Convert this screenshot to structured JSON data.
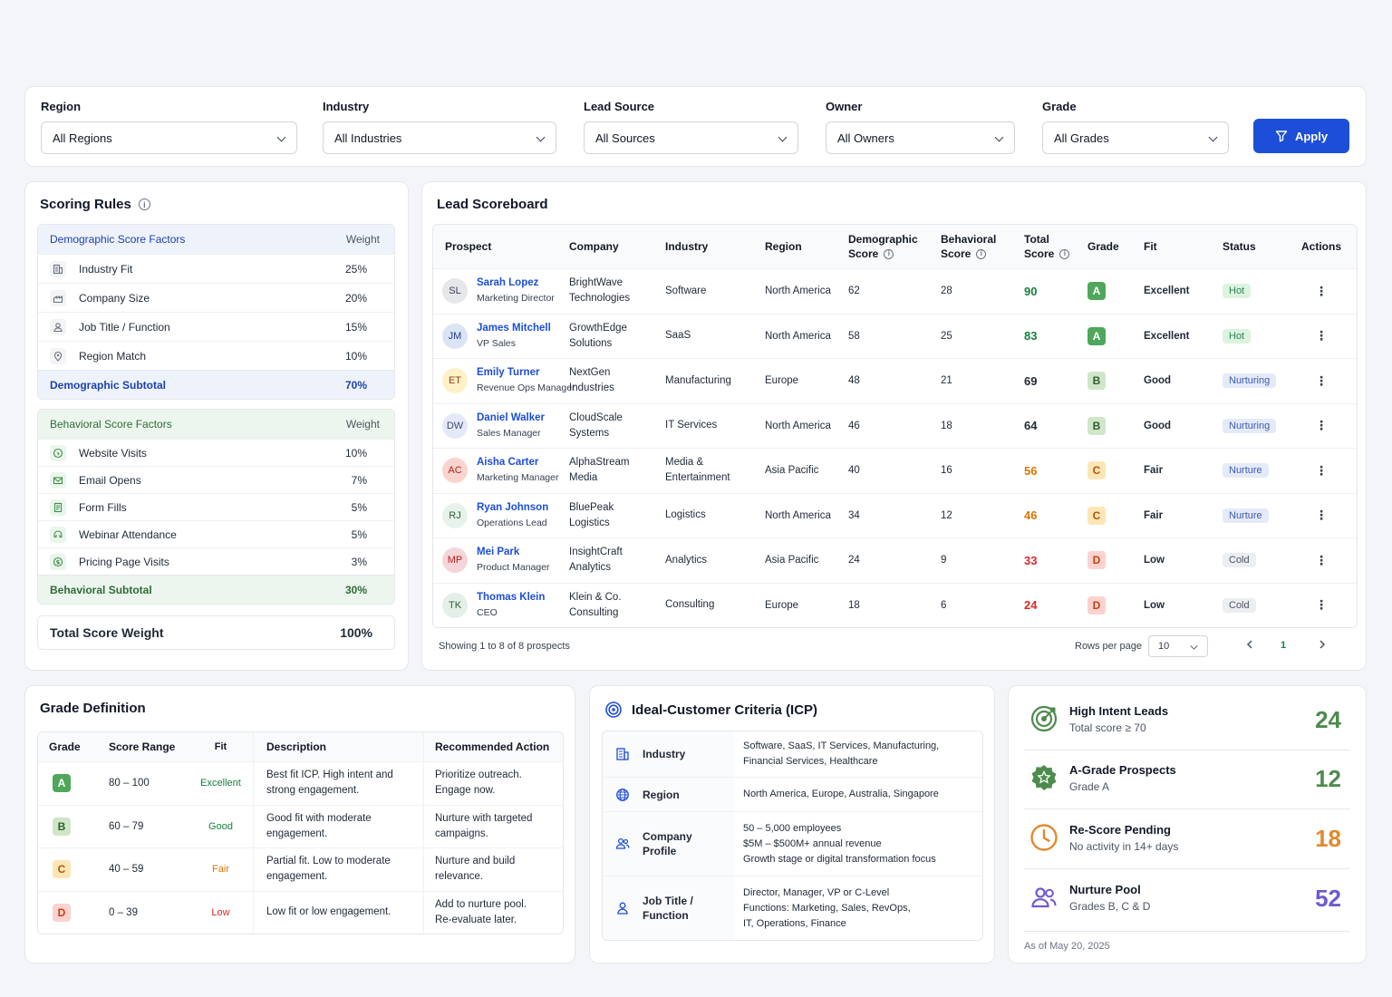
{
  "filters": {
    "region": {
      "label": "Region",
      "value": "All Regions"
    },
    "industry": {
      "label": "Industry",
      "value": "All Industries"
    },
    "lead_source": {
      "label": "Lead Source",
      "value": "All Sources"
    },
    "owner": {
      "label": "Owner",
      "value": "All Owners"
    },
    "grade": {
      "label": "Grade",
      "value": "All Grades"
    },
    "apply_label": "Apply"
  },
  "scoring": {
    "title": "Scoring Rules",
    "demographic": {
      "header": "Demographic Score Factors",
      "weight_header": "Weight",
      "items": [
        {
          "label": "Industry Fit",
          "weight": "25%",
          "icon": "building-icon"
        },
        {
          "label": "Company Size",
          "weight": "20%",
          "icon": "company-size-icon"
        },
        {
          "label": "Job Title / Function",
          "weight": "15%",
          "icon": "person-icon"
        },
        {
          "label": "Region Match",
          "weight": "10%",
          "icon": "location-pin-icon"
        }
      ],
      "subtotal_label": "Demographic Subtotal",
      "subtotal": "70%"
    },
    "behavioral": {
      "header": "Behavioral Score Factors",
      "weight_header": "Weight",
      "items": [
        {
          "label": "Website Visits",
          "weight": "10%",
          "icon": "cursor-icon"
        },
        {
          "label": "Email Opens",
          "weight": "7%",
          "icon": "envelope-icon"
        },
        {
          "label": "Form Fills",
          "weight": "5%",
          "icon": "form-icon"
        },
        {
          "label": "Webinar Attendance",
          "weight": "5%",
          "icon": "webinar-icon"
        },
        {
          "label": "Pricing Page Visits",
          "weight": "3%",
          "icon": "pricing-icon"
        }
      ],
      "subtotal_label": "Behavioral Subtotal",
      "subtotal": "30%"
    },
    "total_label": "Total Score Weight",
    "total": "100%"
  },
  "scoreboard": {
    "title": "Lead Scoreboard",
    "columns": {
      "prospect": "Prospect",
      "company": "Company",
      "industry": "Industry",
      "region": "Region",
      "demographic_1": "Demographic",
      "demographic_2": "Score",
      "behavioral_1": "Behavioral",
      "behavioral_2": "Score",
      "total_1": "Total",
      "total_2": "Score",
      "grade": "Grade",
      "fit": "Fit",
      "status": "Status",
      "actions": "Actions"
    },
    "rows": [
      {
        "initials": "SL",
        "name": "Sarah Lopez",
        "title": "Marketing Director",
        "company_1": "BrightWave",
        "company_2": "Technologies",
        "industry_1": "Software",
        "industry_2": "",
        "region": "North America",
        "demographic": "62",
        "behavioral": "28",
        "total": "90",
        "grade": "A",
        "fit": "Excellent",
        "status": "Hot",
        "avatar_bg": "#e5e7eb",
        "avatar_fg": "#374151",
        "total_color": "#15803d",
        "grade_bg": "#4ea75a",
        "grade_fg": "#ffffff",
        "status_bg": "#dcf3e0",
        "status_fg": "#2f855a"
      },
      {
        "initials": "JM",
        "name": "James Mitchell",
        "title": "VP Sales",
        "company_1": "GrowthEdge",
        "company_2": "Solutions",
        "industry_1": "SaaS",
        "industry_2": "",
        "region": "North America",
        "demographic": "58",
        "behavioral": "25",
        "total": "83",
        "grade": "A",
        "fit": "Excellent",
        "status": "Hot",
        "avatar_bg": "#dbe4f5",
        "avatar_fg": "#1e3a8a",
        "total_color": "#15803d",
        "grade_bg": "#4ea75a",
        "grade_fg": "#ffffff",
        "status_bg": "#dcf3e0",
        "status_fg": "#2f855a"
      },
      {
        "initials": "ET",
        "name": "Emily Turner",
        "title": "Revenue Ops Manager",
        "company_1": "NextGen",
        "company_2": "Industries",
        "industry_1": "Manufacturing",
        "industry_2": "",
        "region": "Europe",
        "demographic": "48",
        "behavioral": "21",
        "total": "69",
        "grade": "B",
        "fit": "Good",
        "status": "Nurturing",
        "avatar_bg": "#fdf1c7",
        "avatar_fg": "#92400e",
        "total_color": "#1f2937",
        "grade_bg": "#cfe6c9",
        "grade_fg": "#2f5d2a",
        "status_bg": "#e5eaf8",
        "status_fg": "#3b5bb5"
      },
      {
        "initials": "DW",
        "name": "Daniel Walker",
        "title": "Sales Manager",
        "company_1": "CloudScale",
        "company_2": "Systems",
        "industry_1": "IT Services",
        "industry_2": "",
        "region": "North America",
        "demographic": "46",
        "behavioral": "18",
        "total": "64",
        "grade": "B",
        "fit": "Good",
        "status": "Nurturing",
        "avatar_bg": "#e5e9f7",
        "avatar_fg": "#3b4a7a",
        "total_color": "#1f2937",
        "grade_bg": "#cfe6c9",
        "grade_fg": "#2f5d2a",
        "status_bg": "#e5eaf8",
        "status_fg": "#3b5bb5"
      },
      {
        "initials": "AC",
        "name": "Aisha Carter",
        "title": "Marketing Manager",
        "company_1": "AlphaStream",
        "company_2": "Media",
        "industry_1": "Media &",
        "industry_2": "Entertainment",
        "region": "Asia Pacific",
        "demographic": "40",
        "behavioral": "16",
        "total": "56",
        "grade": "C",
        "fit": "Fair",
        "status": "Nurture",
        "avatar_bg": "#fad4cf",
        "avatar_fg": "#b42318",
        "total_color": "#d97706",
        "grade_bg": "#fde6b5",
        "grade_fg": "#b45309",
        "status_bg": "#e5eaf8",
        "status_fg": "#3b5bb5"
      },
      {
        "initials": "RJ",
        "name": "Ryan Johnson",
        "title": "Operations Lead",
        "company_1": "BluePeak",
        "company_2": "Logistics",
        "industry_1": "Logistics",
        "industry_2": "",
        "region": "North America",
        "demographic": "34",
        "behavioral": "12",
        "total": "46",
        "grade": "C",
        "fit": "Fair",
        "status": "Nurture",
        "avatar_bg": "#e6f2ea",
        "avatar_fg": "#2f5d3a",
        "total_color": "#d97706",
        "grade_bg": "#fde6b5",
        "grade_fg": "#b45309",
        "status_bg": "#e5eaf8",
        "status_fg": "#3b5bb5"
      },
      {
        "initials": "MP",
        "name": "Mei Park",
        "title": "Product Manager",
        "company_1": "InsightCraft",
        "company_2": "Analytics",
        "industry_1": "Analytics",
        "industry_2": "",
        "region": "Asia Pacific",
        "demographic": "24",
        "behavioral": "9",
        "total": "33",
        "grade": "D",
        "fit": "Low",
        "status": "Cold",
        "avatar_bg": "#f6d5d8",
        "avatar_fg": "#b42318",
        "total_color": "#dc2626",
        "grade_bg": "#fbd2d0",
        "grade_fg": "#c2410c",
        "status_bg": "#eceef1",
        "status_fg": "#4b5563"
      },
      {
        "initials": "TK",
        "name": "Thomas Klein",
        "title": "CEO",
        "company_1": "Klein & Co.",
        "company_2": "Consulting",
        "industry_1": "Consulting",
        "industry_2": "",
        "region": "Europe",
        "demographic": "18",
        "behavioral": "6",
        "total": "24",
        "grade": "D",
        "fit": "Low",
        "status": "Cold",
        "avatar_bg": "#e3efe7",
        "avatar_fg": "#2f5d3a",
        "total_color": "#dc2626",
        "grade_bg": "#fbd2d0",
        "grade_fg": "#c2410c",
        "status_bg": "#eceef1",
        "status_fg": "#4b5563"
      }
    ],
    "showing": "Showing 1 to 8 of 8 prospects",
    "rows_per_page_label": "Rows per page",
    "rows_per_page": "10",
    "page": "1"
  },
  "grade_definition": {
    "title": "Grade Definition",
    "columns": {
      "grade": "Grade",
      "range": "Score Range",
      "fit": "Fit",
      "description": "Description",
      "action": "Recommended Action"
    },
    "rows": [
      {
        "grade": "A",
        "range": "80 – 100",
        "fit": "Excellent",
        "desc_1": "Best fit ICP. High intent and",
        "desc_2": "strong engagement.",
        "action_1": "Prioritize outreach.",
        "action_2": "Engage now.",
        "grade_bg": "#4ea75a",
        "grade_fg": "#ffffff",
        "fit_color": "#15803d"
      },
      {
        "grade": "B",
        "range": "60 – 79",
        "fit": "Good",
        "desc_1": "Good fit with moderate",
        "desc_2": "engagement.",
        "action_1": "Nurture with targeted",
        "action_2": "campaigns.",
        "grade_bg": "#cfe6c9",
        "grade_fg": "#2f5d2a",
        "fit_color": "#15803d"
      },
      {
        "grade": "C",
        "range": "40 – 59",
        "fit": "Fair",
        "desc_1": "Partial fit. Low to moderate",
        "desc_2": "engagement.",
        "action_1": "Nurture and build",
        "action_2": "relevance.",
        "grade_bg": "#fde6b5",
        "grade_fg": "#b45309",
        "fit_color": "#d97706"
      },
      {
        "grade": "D",
        "range": "0 – 39",
        "fit": "Low",
        "desc_1": "Low fit or low engagement.",
        "desc_2": "",
        "action_1": "Add to nurture pool.",
        "action_2": "Re-evaluate later.",
        "grade_bg": "#fbd2d0",
        "grade_fg": "#c2410c",
        "fit_color": "#dc2626"
      }
    ]
  },
  "icp": {
    "title": "Ideal-Customer Criteria (ICP)",
    "rows": [
      {
        "key_1": "Industry",
        "key_2": "",
        "icon": "building-icon",
        "lines": [
          "Software, SaaS, IT Services, Manufacturing,",
          "Financial Services, Healthcare"
        ]
      },
      {
        "key_1": "Region",
        "key_2": "",
        "icon": "globe-icon",
        "lines": [
          "North America, Europe, Australia, Singapore"
        ]
      },
      {
        "key_1": "Company",
        "key_2": "Profile",
        "icon": "people-icon",
        "lines": [
          "50 – 5,000 employees",
          "$5M – $500M+ annual revenue",
          "Growth stage or digital transformation focus"
        ]
      },
      {
        "key_1": "Job Title /",
        "key_2": "Function",
        "icon": "person-icon",
        "lines": [
          "Director, Manager, VP or C-Level",
          "Functions: Marketing, Sales, RevOps,",
          "IT, Operations, Finance"
        ]
      }
    ]
  },
  "kpis": {
    "items": [
      {
        "title": "High Intent Leads",
        "sub": "Total score ≥ 70",
        "value": "24",
        "color": "#4d8b4d",
        "icon": "target-icon"
      },
      {
        "title": "A-Grade Prospects",
        "sub": "Grade A",
        "value": "12",
        "color": "#4d8b4d",
        "icon": "star-badge-icon"
      },
      {
        "title": "Re-Score Pending",
        "sub": "No activity in 14+ days",
        "value": "18",
        "color": "#e08a2c",
        "icon": "clock-icon"
      },
      {
        "title": "Nurture Pool",
        "sub": "Grades B, C & D",
        "value": "52",
        "color": "#6d5bd0",
        "icon": "group-icon"
      }
    ],
    "as_of": "As of May 20, 2025"
  }
}
